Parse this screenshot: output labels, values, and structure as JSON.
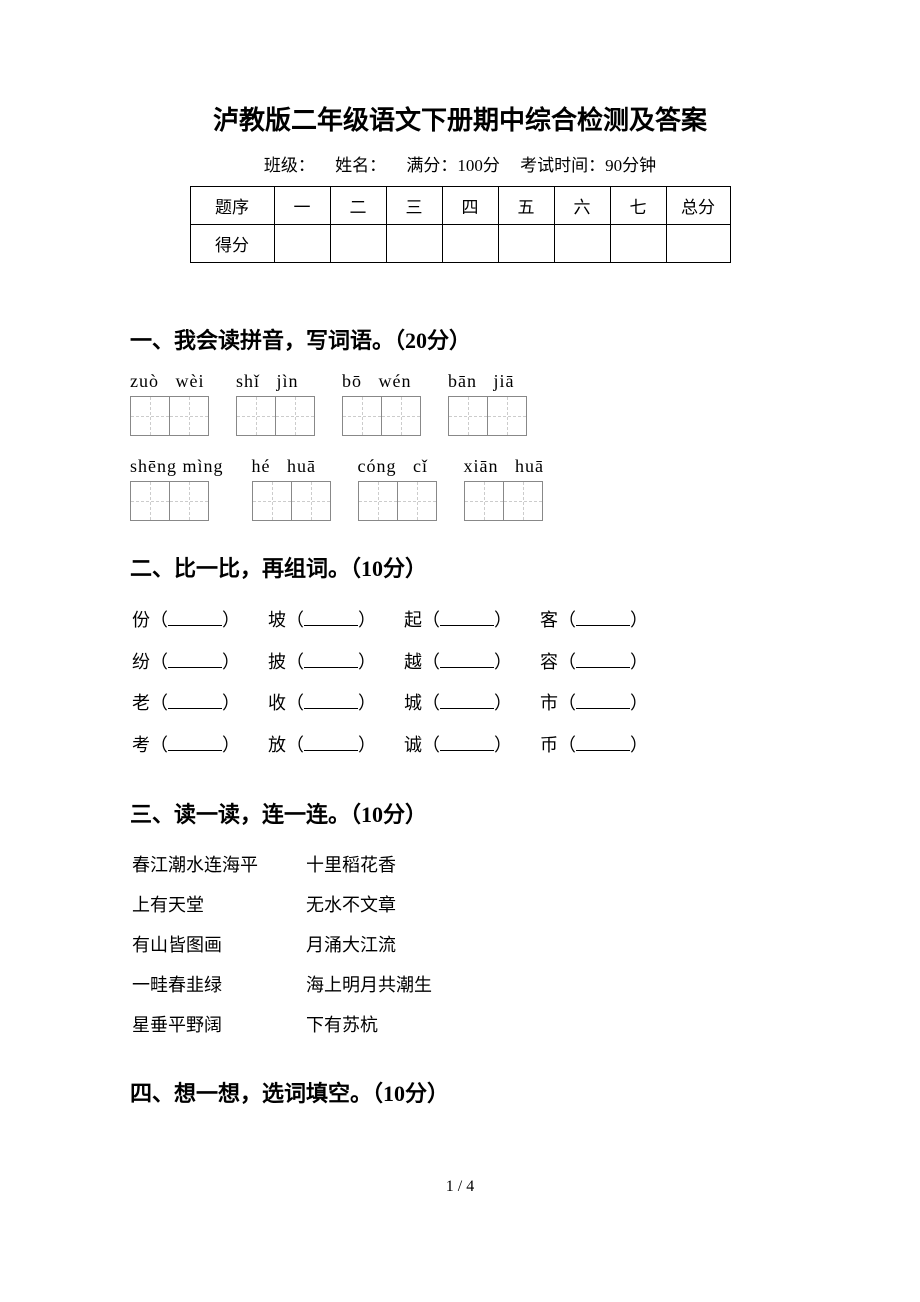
{
  "title": "泸教版二年级语文下册期中综合检测及答案",
  "info": {
    "class_label": "班级：",
    "name_label": "姓名：",
    "full_score_label": "满分：100分",
    "time_label": "考试时间：90分钟"
  },
  "score_table": {
    "row1": [
      "题序",
      "一",
      "二",
      "三",
      "四",
      "五",
      "六",
      "七",
      "总分"
    ],
    "row2_label": "得分"
  },
  "section1": {
    "heading": "一、我会读拼音，写词语。（20分）",
    "row1": [
      {
        "pinyin": "zuò   wèi"
      },
      {
        "pinyin": "shǐ   jìn"
      },
      {
        "pinyin": "bō   wén"
      },
      {
        "pinyin": "bān   jiā"
      }
    ],
    "row2": [
      {
        "pinyin": "shēng mìng"
      },
      {
        "pinyin": "hé   huā"
      },
      {
        "pinyin": "cóng   cǐ"
      },
      {
        "pinyin": "xiān   huā"
      }
    ]
  },
  "section2": {
    "heading": "二、比一比，再组词。（10分）",
    "rows": [
      [
        "份",
        "坡",
        "起",
        "客"
      ],
      [
        "纷",
        "披",
        "越",
        "容"
      ],
      [
        "老",
        "收",
        "城",
        "市"
      ],
      [
        "考",
        "放",
        "诚",
        "币"
      ]
    ]
  },
  "section3": {
    "heading": "三、读一读，连一连。（10分）",
    "pairs": [
      [
        "春江潮水连海平",
        "十里稻花香"
      ],
      [
        "上有天堂",
        "无水不文章"
      ],
      [
        "有山皆图画",
        "月涌大江流"
      ],
      [
        "一畦春韭绿",
        "海上明月共潮生"
      ],
      [
        "星垂平野阔",
        "下有苏杭"
      ]
    ]
  },
  "section4": {
    "heading": "四、想一想，选词填空。（10分）"
  },
  "footer": "1 / 4"
}
